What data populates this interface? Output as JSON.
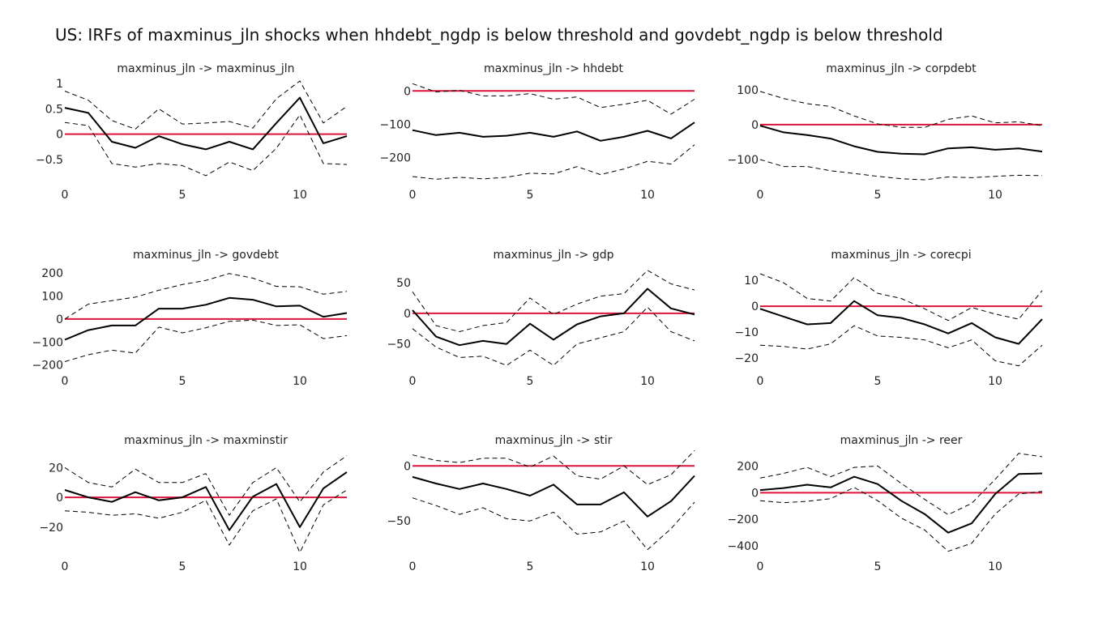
{
  "figure": {
    "title": "US: IRFs of maxminus_jln shocks when hhdebt_ngdp is below threshold and govdebt_ngdp is below threshold"
  },
  "colors": {
    "irf": "#000000",
    "bands": "#000000",
    "zero_line": "#dc143c",
    "text": "#222222"
  },
  "chart_data": [
    {
      "type": "line",
      "title": "maxminus_jln -> maxminus_jln",
      "x": [
        0,
        1,
        2,
        3,
        4,
        5,
        6,
        7,
        8,
        9,
        10,
        11,
        12
      ],
      "xticks": [
        0,
        5,
        10
      ],
      "xlim": [
        0,
        12
      ],
      "ylim": [
        -0.95,
        1.05
      ],
      "yticks": [
        {
          "v": 1,
          "t": "1"
        },
        {
          "v": 0.5,
          "t": "0.5"
        },
        {
          "v": 0,
          "t": "0"
        },
        {
          "v": -0.5,
          "t": "−0.5"
        }
      ],
      "zero_line": 0,
      "series": [
        {
          "role": "irf",
          "values": [
            0.52,
            0.42,
            -0.15,
            -0.27,
            -0.04,
            -0.2,
            -0.3,
            -0.15,
            -0.3,
            0.22,
            0.72,
            -0.18,
            -0.04
          ]
        },
        {
          "role": "upper",
          "values": [
            0.85,
            0.67,
            0.27,
            0.1,
            0.5,
            0.2,
            0.22,
            0.25,
            0.12,
            0.7,
            1.05,
            0.22,
            0.55
          ]
        },
        {
          "role": "lower",
          "values": [
            0.23,
            0.17,
            -0.58,
            -0.65,
            -0.58,
            -0.62,
            -0.82,
            -0.55,
            -0.72,
            -0.28,
            0.38,
            -0.58,
            -0.6
          ]
        }
      ]
    },
    {
      "type": "line",
      "title": "maxminus_jln -> hhdebt",
      "x": [
        0,
        1,
        2,
        3,
        4,
        5,
        6,
        7,
        8,
        9,
        10,
        11,
        12
      ],
      "xticks": [
        0,
        5,
        10
      ],
      "xlim": [
        0,
        12
      ],
      "ylim": [
        -275,
        30
      ],
      "yticks": [
        {
          "v": 0,
          "t": "0"
        },
        {
          "v": -100,
          "t": "−100"
        },
        {
          "v": -200,
          "t": "−200"
        }
      ],
      "zero_line": 0,
      "series": [
        {
          "role": "irf",
          "values": [
            -118,
            -133,
            -126,
            -138,
            -135,
            -126,
            -138,
            -122,
            -150,
            -138,
            -120,
            -143,
            -95
          ]
        },
        {
          "role": "upper",
          "values": [
            22,
            -3,
            2,
            -15,
            -15,
            -8,
            -25,
            -18,
            -50,
            -40,
            -28,
            -70,
            -25
          ]
        },
        {
          "role": "lower",
          "values": [
            -258,
            -266,
            -260,
            -265,
            -260,
            -248,
            -250,
            -228,
            -252,
            -235,
            -212,
            -220,
            -162
          ]
        }
      ]
    },
    {
      "type": "line",
      "title": "maxminus_jln -> corpdebt",
      "x": [
        0,
        1,
        2,
        3,
        4,
        5,
        6,
        7,
        8,
        9,
        10,
        11,
        12
      ],
      "xticks": [
        0,
        5,
        10
      ],
      "xlim": [
        0,
        12
      ],
      "ylim": [
        -165,
        125
      ],
      "yticks": [
        {
          "v": 100,
          "t": "100"
        },
        {
          "v": 0,
          "t": "0"
        },
        {
          "v": -100,
          "t": "−100"
        }
      ],
      "zero_line": 0,
      "series": [
        {
          "role": "irf",
          "values": [
            -3,
            -22,
            -30,
            -40,
            -62,
            -78,
            -83,
            -85,
            -68,
            -65,
            -72,
            -68,
            -77
          ]
        },
        {
          "role": "upper",
          "values": [
            95,
            75,
            60,
            52,
            25,
            2,
            -8,
            -8,
            15,
            25,
            5,
            8,
            -3
          ]
        },
        {
          "role": "lower",
          "values": [
            -100,
            -120,
            -120,
            -132,
            -140,
            -148,
            -155,
            -158,
            -150,
            -152,
            -148,
            -145,
            -146
          ]
        }
      ]
    },
    {
      "type": "line",
      "title": "maxminus_jln -> govdebt",
      "x": [
        0,
        1,
        2,
        3,
        4,
        5,
        6,
        7,
        8,
        9,
        10,
        11,
        12
      ],
      "xticks": [
        0,
        5,
        10
      ],
      "xlim": [
        0,
        12
      ],
      "ylim": [
        -215,
        225
      ],
      "yticks": [
        {
          "v": 200,
          "t": "200"
        },
        {
          "v": 100,
          "t": "100"
        },
        {
          "v": 0,
          "t": "0"
        },
        {
          "v": -100,
          "t": "−100"
        },
        {
          "v": -200,
          "t": "−200"
        }
      ],
      "zero_line": 0,
      "series": [
        {
          "role": "irf",
          "values": [
            -90,
            -48,
            -28,
            -28,
            45,
            45,
            62,
            92,
            84,
            55,
            58,
            10,
            26
          ]
        },
        {
          "role": "upper",
          "values": [
            0,
            65,
            80,
            95,
            125,
            150,
            168,
            198,
            178,
            142,
            140,
            108,
            120
          ]
        },
        {
          "role": "lower",
          "values": [
            -185,
            -155,
            -135,
            -148,
            -35,
            -60,
            -38,
            -10,
            -5,
            -28,
            -25,
            -85,
            -72
          ]
        }
      ]
    },
    {
      "type": "line",
      "title": "maxminus_jln -> gdp",
      "x": [
        0,
        1,
        2,
        3,
        4,
        5,
        6,
        7,
        8,
        9,
        10,
        11,
        12
      ],
      "xticks": [
        0,
        5,
        10
      ],
      "xlim": [
        0,
        12
      ],
      "ylim": [
        -90,
        75
      ],
      "yticks": [
        {
          "v": 50,
          "t": "50"
        },
        {
          "v": 0,
          "t": "0"
        },
        {
          "v": -50,
          "t": "−50"
        }
      ],
      "zero_line": 0,
      "series": [
        {
          "role": "irf",
          "values": [
            5,
            -38,
            -52,
            -45,
            -50,
            -17,
            -43,
            -18,
            -5,
            0,
            40,
            8,
            -2
          ]
        },
        {
          "role": "upper",
          "values": [
            35,
            -20,
            -30,
            -20,
            -15,
            25,
            -2,
            15,
            28,
            32,
            70,
            48,
            38
          ]
        },
        {
          "role": "lower",
          "values": [
            -25,
            -55,
            -72,
            -70,
            -85,
            -60,
            -85,
            -50,
            -40,
            -30,
            10,
            -30,
            -45
          ]
        }
      ]
    },
    {
      "type": "line",
      "title": "maxminus_jln -> corecpi",
      "x": [
        0,
        1,
        2,
        3,
        4,
        5,
        6,
        7,
        8,
        9,
        10,
        11,
        12
      ],
      "xticks": [
        0,
        5,
        10
      ],
      "xlim": [
        0,
        12
      ],
      "ylim": [
        -24,
        15
      ],
      "yticks": [
        {
          "v": 10,
          "t": "10"
        },
        {
          "v": 0,
          "t": "0"
        },
        {
          "v": -10,
          "t": "−10"
        },
        {
          "v": -20,
          "t": "−20"
        }
      ],
      "zero_line": 0,
      "series": [
        {
          "role": "irf",
          "values": [
            -1,
            -4,
            -7,
            -6.5,
            2,
            -3.5,
            -4.5,
            -7,
            -10.5,
            -6.5,
            -12,
            -14.5,
            -5
          ]
        },
        {
          "role": "upper",
          "values": [
            12.5,
            9,
            3,
            2,
            11,
            5,
            3,
            -1,
            -5.5,
            -0.5,
            -3,
            -5,
            6
          ]
        },
        {
          "role": "lower",
          "values": [
            -15,
            -15.5,
            -16.5,
            -14.5,
            -7.5,
            -11.5,
            -12,
            -13,
            -16,
            -13,
            -21,
            -23,
            -15
          ]
        }
      ]
    },
    {
      "type": "line",
      "title": "maxminus_jln -> maxminstir",
      "x": [
        0,
        1,
        2,
        3,
        4,
        5,
        6,
        7,
        8,
        9,
        10,
        11,
        12
      ],
      "xticks": [
        0,
        5,
        10
      ],
      "xlim": [
        0,
        12
      ],
      "ylim": [
        -38,
        30
      ],
      "yticks": [
        {
          "v": 20,
          "t": "20"
        },
        {
          "v": 0,
          "t": "0"
        },
        {
          "v": -20,
          "t": "−20"
        }
      ],
      "zero_line": 0,
      "series": [
        {
          "role": "irf",
          "values": [
            5,
            0,
            -3,
            3.5,
            -2,
            0,
            7,
            -22,
            0.5,
            9,
            -20,
            6,
            17
          ]
        },
        {
          "role": "upper",
          "values": [
            20,
            10,
            7,
            19,
            10,
            10,
            16,
            -12,
            10,
            20,
            -3,
            17,
            28
          ]
        },
        {
          "role": "lower",
          "values": [
            -9,
            -10,
            -12,
            -11,
            -14,
            -10,
            -2,
            -32,
            -9,
            -1,
            -37,
            -5,
            5
          ]
        }
      ]
    },
    {
      "type": "line",
      "title": "maxminus_jln -> stir",
      "x": [
        0,
        1,
        2,
        3,
        4,
        5,
        6,
        7,
        8,
        9,
        10,
        11,
        12
      ],
      "xticks": [
        0,
        5,
        10
      ],
      "xlim": [
        0,
        12
      ],
      "ylim": [
        -80,
        12
      ],
      "yticks": [
        {
          "v": 0,
          "t": "0"
        },
        {
          "v": -50,
          "t": "−50"
        }
      ],
      "zero_line": 0,
      "series": [
        {
          "role": "irf",
          "values": [
            -10,
            -16,
            -21,
            -16,
            -21,
            -27,
            -17,
            -35,
            -35,
            -24,
            -46,
            -32,
            -9
          ]
        },
        {
          "role": "upper",
          "values": [
            10,
            5,
            3,
            7,
            7,
            -1,
            9,
            -9,
            -12,
            0,
            -17,
            -8,
            14
          ]
        },
        {
          "role": "lower",
          "values": [
            -29,
            -36,
            -44,
            -38,
            -48,
            -50,
            -42,
            -62,
            -60,
            -50,
            -76,
            -57,
            -33
          ]
        }
      ]
    },
    {
      "type": "line",
      "title": "maxminus_jln -> reer",
      "x": [
        0,
        1,
        2,
        3,
        4,
        5,
        6,
        7,
        8,
        9,
        10,
        11,
        12
      ],
      "xticks": [
        0,
        5,
        10
      ],
      "xlim": [
        0,
        12
      ],
      "ylim": [
        -460,
        300
      ],
      "yticks": [
        {
          "v": 200,
          "t": "200"
        },
        {
          "v": 0,
          "t": "0"
        },
        {
          "v": -200,
          "t": "−200"
        },
        {
          "v": -400,
          "t": "−400"
        }
      ],
      "zero_line": 0,
      "series": [
        {
          "role": "irf",
          "values": [
            20,
            35,
            60,
            40,
            120,
            65,
            -60,
            -160,
            -300,
            -230,
            -10,
            140,
            145
          ]
        },
        {
          "role": "upper",
          "values": [
            110,
            145,
            190,
            120,
            190,
            200,
            70,
            -50,
            -165,
            -80,
            100,
            295,
            270
          ]
        },
        {
          "role": "lower",
          "values": [
            -60,
            -75,
            -65,
            -45,
            40,
            -60,
            -190,
            -280,
            -440,
            -380,
            -160,
            -10,
            10
          ]
        }
      ]
    }
  ]
}
